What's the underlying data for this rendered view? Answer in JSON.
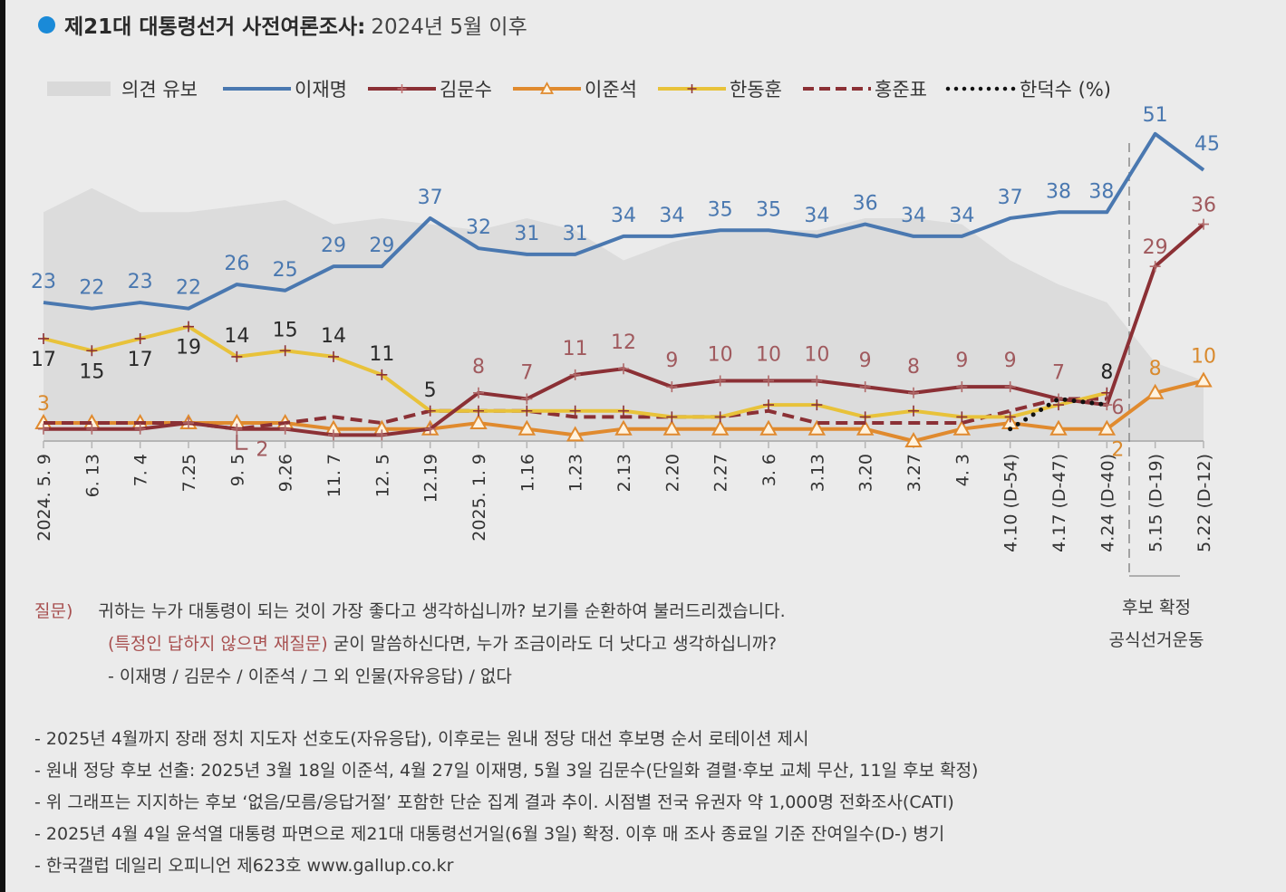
{
  "title": {
    "bold": "제21대 대통령선거 사전여론조사:",
    "rest": "2024년 5월 이후"
  },
  "colors": {
    "title_dot": "#1a8ad8",
    "background": "#ebebeb",
    "withheld_area": "#d9d9d9",
    "lee_jaemyung": "#4a78b0",
    "kim_moonsoo": "#8b3035",
    "lee_junseok": "#e08a2e",
    "han_donghoon": "#e8c23a",
    "hong_junpyo": "#8b3035",
    "han_ducksoo": "#111111"
  },
  "chart_data": {
    "type": "line",
    "title": "제21대 대통령선거 사전여론조사: 2024년 5월 이후",
    "xlabel": "",
    "ylabel": "",
    "unit": "%",
    "ylim": [
      0,
      55
    ],
    "grid": false,
    "legend_position": "top",
    "categories": [
      "2024. 5. 9",
      "6. 13",
      "7. 4",
      "7.25",
      "9. 5",
      "9.26",
      "11. 7",
      "12. 5",
      "12.19",
      "2025. 1. 9",
      "1.16",
      "1.23",
      "2.13",
      "2.20",
      "2.27",
      "3. 6",
      "3.13",
      "3.20",
      "3.27",
      "4. 3",
      "4.10 (D-54)",
      "4.17 (D-47)",
      "4.24 (D-40)",
      "5.15 (D-19)",
      "5.22 (D-12)"
    ],
    "divider_after_index": 22,
    "divider_note": [
      "후보 확정",
      "공식선거운동"
    ],
    "area": {
      "name": "의견 유보",
      "values": [
        38,
        42,
        38,
        38,
        39,
        40,
        36,
        37,
        36,
        35,
        37,
        35,
        30,
        33,
        35,
        35,
        35,
        37,
        37,
        36,
        30,
        26,
        23,
        13,
        10
      ]
    },
    "series": [
      {
        "key": "lee_jaemyung",
        "name": "이재명",
        "style": "solid",
        "marker": "none",
        "values": [
          23,
          22,
          23,
          22,
          26,
          25,
          29,
          29,
          37,
          32,
          31,
          31,
          34,
          34,
          35,
          35,
          34,
          36,
          34,
          34,
          37,
          38,
          38,
          51,
          45
        ],
        "labels": [
          "23",
          "22",
          "23",
          "22",
          "26",
          "25",
          "29",
          "29",
          "37",
          "32",
          "31",
          "31",
          "34",
          "34",
          "35",
          "35",
          "34",
          "36",
          "34",
          "34",
          "37",
          "38",
          "38",
          "51",
          "45"
        ]
      },
      {
        "key": "kim_moonsoo",
        "name": "김문수",
        "style": "solid",
        "marker": "plus",
        "values": [
          2,
          2,
          2,
          3,
          2,
          2,
          1,
          1,
          2,
          8,
          7,
          11,
          12,
          9,
          10,
          10,
          10,
          9,
          8,
          9,
          9,
          7,
          6,
          29,
          36
        ],
        "labels": [
          "",
          "",
          "",
          "",
          "",
          "",
          "",
          "",
          "",
          "8",
          "7",
          "11",
          "12",
          "9",
          "10",
          "10",
          "10",
          "9",
          "8",
          "9",
          "9",
          "7",
          "6",
          "29",
          "36"
        ]
      },
      {
        "key": "lee_junseok",
        "name": "이준석",
        "style": "solid",
        "marker": "triangle",
        "values": [
          3,
          3,
          3,
          3,
          3,
          3,
          2,
          2,
          2,
          3,
          2,
          1,
          2,
          2,
          2,
          2,
          2,
          2,
          0,
          2,
          3,
          2,
          2,
          8,
          10
        ],
        "labels": [
          "3",
          "",
          "",
          "",
          "",
          "",
          "",
          "",
          "",
          "",
          "",
          "",
          "",
          "",
          "",
          "",
          "",
          "",
          "",
          "",
          "",
          "",
          "2",
          "8",
          "10"
        ]
      },
      {
        "key": "han_donghoon",
        "name": "한동훈",
        "style": "solid",
        "marker": "plus",
        "values": [
          17,
          15,
          17,
          19,
          14,
          15,
          14,
          11,
          5,
          5,
          5,
          5,
          5,
          4,
          4,
          6,
          6,
          4,
          5,
          4,
          4,
          6,
          8,
          null,
          null
        ],
        "labels": [
          "17",
          "15",
          "17",
          "19",
          "14",
          "15",
          "14",
          "11",
          "5",
          "",
          "",
          "",
          "",
          "",
          "",
          "",
          "",
          "",
          "",
          "",
          "",
          "",
          "8",
          "",
          ""
        ]
      },
      {
        "key": "hong_junpyo",
        "name": "홍준표",
        "style": "dashed",
        "marker": "none",
        "values": [
          3,
          3,
          3,
          3,
          2,
          3,
          4,
          3,
          5,
          5,
          5,
          4,
          4,
          4,
          4,
          5,
          3,
          3,
          3,
          3,
          5,
          7,
          7,
          null,
          null
        ],
        "labels": [
          "",
          "",
          "",
          "",
          "2",
          "",
          "",
          "",
          "",
          "",
          "",
          "",
          "",
          "",
          "",
          "",
          "",
          "",
          "",
          "",
          "",
          "",
          "",
          "",
          ""
        ]
      },
      {
        "key": "han_ducksoo",
        "name": "한덕수 (%)",
        "style": "dotted",
        "marker": "none",
        "values": [
          null,
          null,
          null,
          null,
          null,
          null,
          null,
          null,
          null,
          null,
          null,
          null,
          null,
          null,
          null,
          null,
          null,
          null,
          null,
          null,
          2,
          7,
          6,
          null,
          null
        ],
        "labels": []
      }
    ],
    "legend": [
      "의견 유보",
      "이재명",
      "김문수",
      "이준석",
      "한동훈",
      "홍준표",
      "한덕수 (%)"
    ]
  },
  "question": {
    "label": "질문)",
    "line1": "귀하는 누가 대통령이 되는 것이 가장 좋다고 생각하십니까? 보기를 순환하여 불러드리겠습니다.",
    "line2_red": "(특정인 답하지 않으면 재질문)",
    "line2_rest": "굳이 말씀하신다면, 누가 조금이라도 더 낫다고 생각하십니까?",
    "line3": "- 이재명 / 김문수 / 이준석 / 그 외 인물(자유응답) / 없다"
  },
  "side_note": {
    "line1": "후보 확정",
    "line2": "공식선거운동"
  },
  "footnotes": [
    "- 2025년 4월까지 장래 정치 지도자 선호도(자유응답), 이후로는 원내 정당 대선 후보명 순서 로테이션 제시",
    "- 원내 정당 후보 선출: 2025년 3월 18일 이준석, 4월 27일 이재명, 5월 3일 김문수(단일화 결렬·후보 교체 무산, 11일 후보 확정)",
    "- 위 그래프는 지지하는 후보 ‘없음/모름/응답거절’ 포함한 단순 집계 결과 추이. 시점별 전국 유권자 약 1,000명 전화조사(CATI)",
    "- 2025년 4월 4일 윤석열 대통령 파면으로 제21대 대통령선거일(6월 3일) 확정. 이후 매 조사 종료일 기준 잔여일수(D-) 병기",
    "- 한국갤럽 데일리 오피니언 제623호 www.gallup.co.kr"
  ]
}
